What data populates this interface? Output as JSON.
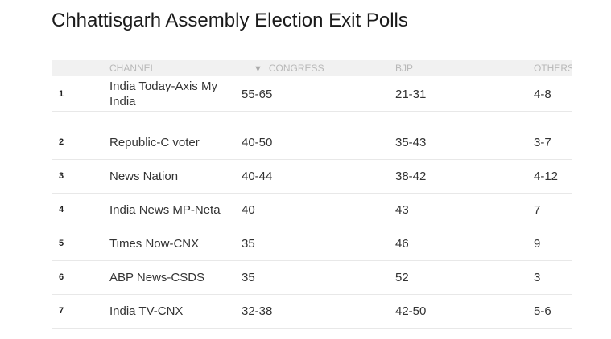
{
  "title": "Chhattisgarh Assembly Election Exit Polls",
  "table": {
    "sort_icon": "sort-descending-triangle",
    "headers": {
      "channel": "CHANNEL",
      "congress": "CONGRESS",
      "bjp": "BJP",
      "others": "OTHERS"
    },
    "rows": [
      {
        "rank": "1",
        "channel": "India Today-Axis My India",
        "congress": "55-65",
        "bjp": "21-31",
        "others": "4-8"
      },
      {
        "rank": "2",
        "channel": "Republic-C voter",
        "congress": "40-50",
        "bjp": "35-43",
        "others": "3-7"
      },
      {
        "rank": "3",
        "channel": "News Nation",
        "congress": "40-44",
        "bjp": "38-42",
        "others": "4-12"
      },
      {
        "rank": "4",
        "channel": "India News MP-Neta",
        "congress": "40",
        "bjp": "43",
        "others": "7"
      },
      {
        "rank": "5",
        "channel": "Times Now-CNX",
        "congress": "35",
        "bjp": "46",
        "others": "9"
      },
      {
        "rank": "6",
        "channel": "ABP News-CSDS",
        "congress": "35",
        "bjp": "52",
        "others": "3"
      },
      {
        "rank": "7",
        "channel": "India TV-CNX",
        "congress": "32-38",
        "bjp": "42-50",
        "others": "5-6"
      }
    ]
  }
}
